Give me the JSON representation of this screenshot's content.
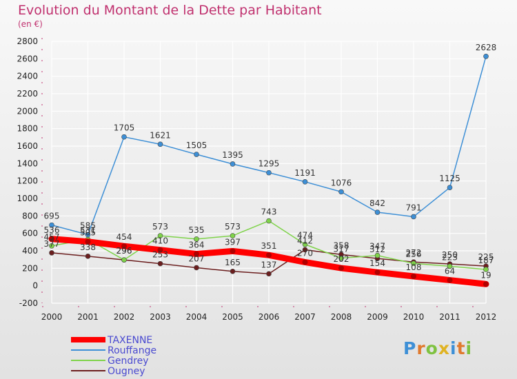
{
  "chart_data": {
    "type": "line",
    "title": "Evolution du Montant de la Dette par Habitant",
    "subtitle": "(en €)",
    "x": [
      "2000",
      "2001",
      "2002",
      "2003",
      "2004",
      "2005",
      "2006",
      "2007",
      "2008",
      "2009",
      "2010",
      "2011",
      "2012"
    ],
    "ylim": [
      -200,
      2800
    ],
    "yticks": [
      -200,
      0,
      200,
      400,
      600,
      800,
      1000,
      1200,
      1400,
      1600,
      1800,
      2000,
      2200,
      2400,
      2600,
      2800
    ],
    "grid": true,
    "legend": "bottom-left",
    "series": [
      {
        "name": "TAXENNE",
        "color": "#ff0000",
        "values": [
          536,
          505,
          454,
          410,
          364,
          397,
          351,
          270,
          202,
          154,
          108,
          64,
          19
        ]
      },
      {
        "name": "Rouffange",
        "color": "#3d8fd6",
        "values": [
          695,
          585,
          1705,
          1621,
          1505,
          1395,
          1295,
          1191,
          1076,
          842,
          791,
          1125,
          2628
        ]
      },
      {
        "name": "Gendrey",
        "color": "#7fd34a",
        "values": [
          457,
          531,
          296,
          573,
          535,
          573,
          743,
          474,
          317,
          347,
          256,
          223,
          187
        ]
      },
      {
        "name": "Ougney",
        "color": "#6b1e1e",
        "values": [
          377,
          338,
          296,
          253,
          207,
          165,
          137,
          412,
          358,
          312,
          272,
          250,
          225
        ]
      }
    ],
    "data_labels": [
      {
        "series": 0,
        "labels": [
          "536",
          "505",
          "454",
          "410",
          "364",
          "397",
          "351",
          "270",
          "202",
          "154",
          "108",
          "64",
          "19"
        ]
      },
      {
        "series": 1,
        "labels": [
          "695",
          "585",
          "1705",
          "1621",
          "1505",
          "1395",
          "1295",
          "1191",
          "1076",
          "842",
          "791",
          "1125",
          "2628"
        ]
      },
      {
        "series": 2,
        "labels": [
          "457",
          "531",
          "296",
          "573",
          "535",
          "573",
          "743",
          "474",
          "317",
          "347",
          "256",
          "223",
          "187"
        ]
      },
      {
        "series": 3,
        "labels": [
          "377",
          "338",
          "296",
          "253",
          "207",
          "165",
          "137",
          "412",
          "358",
          "312",
          "272",
          "250",
          "225"
        ]
      }
    ]
  },
  "logo": {
    "letters": [
      "P",
      "r",
      "o",
      "x",
      "i",
      "t",
      "i"
    ],
    "colors": [
      "#3d8fd6",
      "#e07a2e",
      "#7fc241",
      "#e0b322",
      "#3d8fd6",
      "#e07a2e",
      "#7fc241"
    ]
  }
}
